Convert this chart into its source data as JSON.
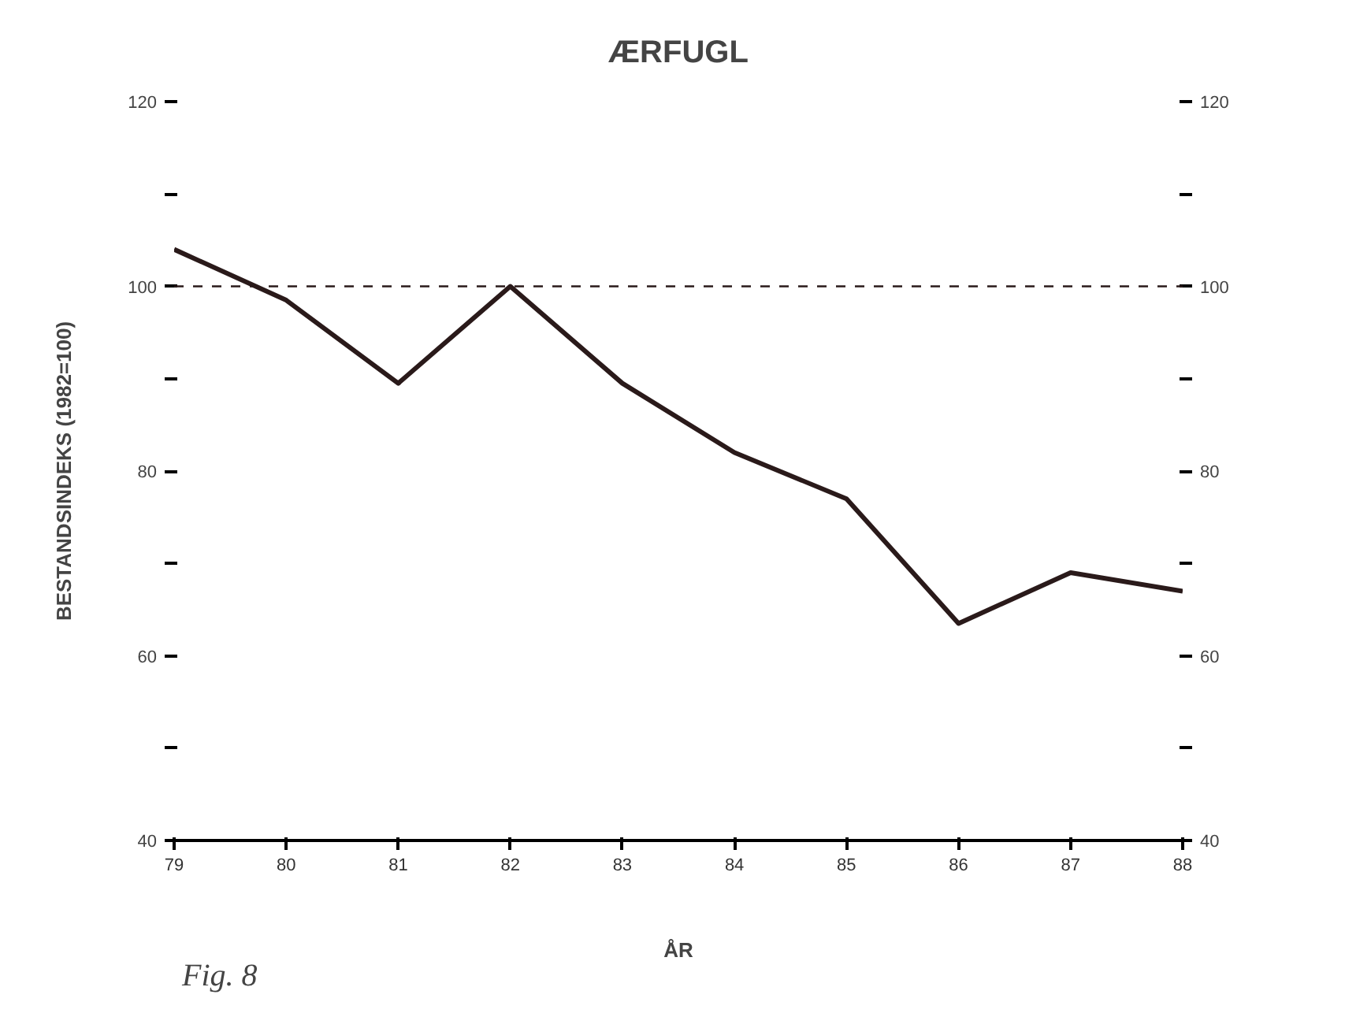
{
  "chart_data": {
    "type": "line",
    "title": "ÆRFUGL",
    "xlabel": "ÅR",
    "ylabel": "BESTANDSINDEKS (1982=100)",
    "x": [
      79,
      80,
      81,
      82,
      83,
      84,
      85,
      86,
      87,
      88
    ],
    "series": [
      {
        "color": "#2a1a1a",
        "values": [
          104,
          98.5,
          89.5,
          100,
          89.5,
          82,
          77,
          63.5,
          69,
          67
        ]
      }
    ],
    "xlim": [
      79,
      88
    ],
    "xticks": [
      79,
      80,
      81,
      82,
      83,
      84,
      85,
      86,
      87,
      88
    ],
    "ylim": [
      40,
      120
    ],
    "yticks": [
      40,
      {
        "value": 50,
        "label": null
      },
      60,
      {
        "value": 70,
        "label": null
      },
      80,
      {
        "value": 90,
        "label": null
      },
      100,
      {
        "value": 110,
        "label": null
      },
      120
    ],
    "y2lim": [
      40,
      120
    ],
    "y2ticks": [
      40,
      {
        "value": 50,
        "label": null
      },
      60,
      {
        "value": 70,
        "label": null
      },
      80,
      {
        "value": 90,
        "label": null
      },
      100,
      {
        "value": 110,
        "label": null
      },
      120
    ],
    "ref_lines": [
      {
        "axis": "y",
        "value": 100,
        "line_style": "dashed",
        "color": "#2a1a1a"
      }
    ],
    "grid": false,
    "marker": "none",
    "line_style": "solid",
    "annotations": [
      "Fig. 8"
    ]
  }
}
